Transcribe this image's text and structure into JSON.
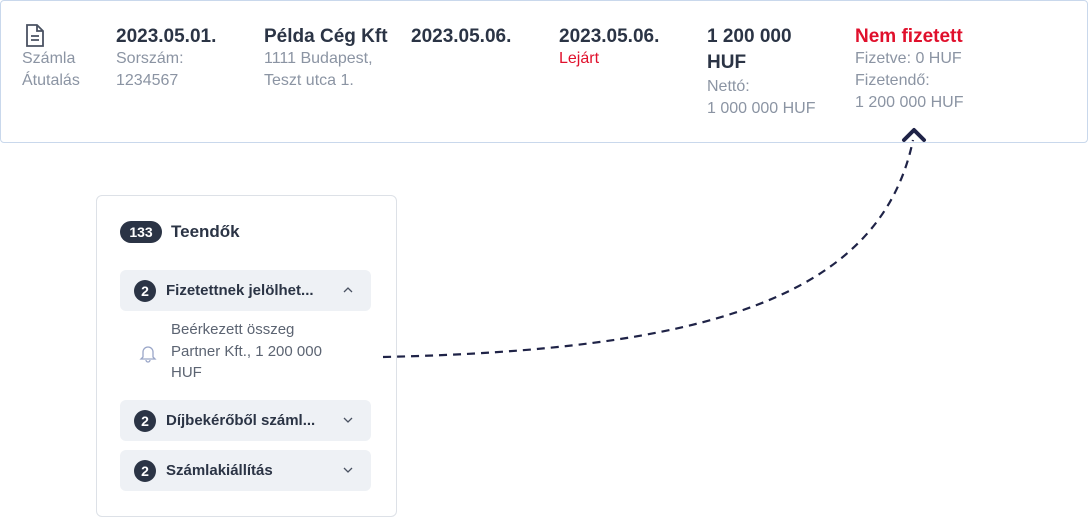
{
  "invoice_row": {
    "type_cell": {
      "title": "Számla",
      "subtitle": "Átutalás"
    },
    "date_cell": {
      "date": "2023.05.01.",
      "label": "Sorszám:",
      "number": "1234567"
    },
    "partner_cell": {
      "name": "Példa Cég Kft",
      "address_lines": [
        "1111 Budapest,",
        "Teszt utca 1."
      ]
    },
    "fulfillment_cell": {
      "date": "2023.05.06."
    },
    "due_cell": {
      "date": "2023.05.06.",
      "status": "Lejárt"
    },
    "amount_cell": {
      "gross_lines": [
        "1 200 000",
        "HUF"
      ],
      "net_label": "Nettó:",
      "net": "1 000 000 HUF"
    },
    "payment_cell": {
      "status": "Nem fizetett",
      "paid": "Fizetve: 0 HUF",
      "due_label": "Fizetendő:",
      "due": "1 200 000 HUF"
    }
  },
  "todo_panel": {
    "count": "133",
    "title": "Teendők",
    "groups": [
      {
        "count": "2",
        "title": "Fizetettnek jelölhet...",
        "items": [
          {
            "lines": [
              "Beérkezett összeg",
              "Partner Kft., 1 200 000",
              "HUF"
            ]
          }
        ]
      },
      {
        "count": "2",
        "title": "Díjbekérőből száml..."
      },
      {
        "count": "2",
        "title": "Számlakiállítás"
      }
    ]
  }
}
